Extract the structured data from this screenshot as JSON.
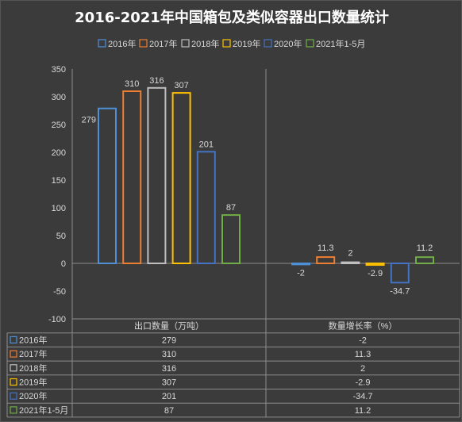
{
  "chart_data": {
    "type": "bar",
    "title": "2016-2021年中国箱包及类似容器出口数量统计",
    "categories": [
      "出口数量（万吨）",
      "数量增长率（%）"
    ],
    "series": [
      {
        "name": "2016年",
        "color": "#4f8fd6",
        "values": [
          279,
          -2
        ]
      },
      {
        "name": "2017年",
        "color": "#ed7d31",
        "values": [
          310,
          11.3
        ]
      },
      {
        "name": "2018年",
        "color": "#bfbfbf",
        "values": [
          316,
          2
        ]
      },
      {
        "name": "2019年",
        "color": "#ffc000",
        "values": [
          307,
          -2.9
        ]
      },
      {
        "name": "2020年",
        "color": "#4472c4",
        "values": [
          201,
          -34.7
        ]
      },
      {
        "name": "2021年1-5月",
        "color": "#70ad47",
        "values": [
          87,
          11.2
        ]
      }
    ],
    "data_labels": [
      [
        "279",
        "-2"
      ],
      [
        "310",
        "11.3"
      ],
      [
        "316",
        "2"
      ],
      [
        "307",
        "-2.9"
      ],
      [
        "201",
        "-34.7"
      ],
      [
        "87",
        "11.2"
      ]
    ],
    "ylim": [
      -100,
      350
    ],
    "yticks": [
      -100,
      -50,
      0,
      50,
      100,
      150,
      200,
      250,
      300,
      350
    ],
    "grid": false,
    "legend": "top-center",
    "data_table": true,
    "xlabel": "",
    "ylabel": ""
  },
  "colors": {
    "background": "#3b3b3b",
    "text": "#d9d9d9",
    "lines": "#8c8c8c"
  }
}
